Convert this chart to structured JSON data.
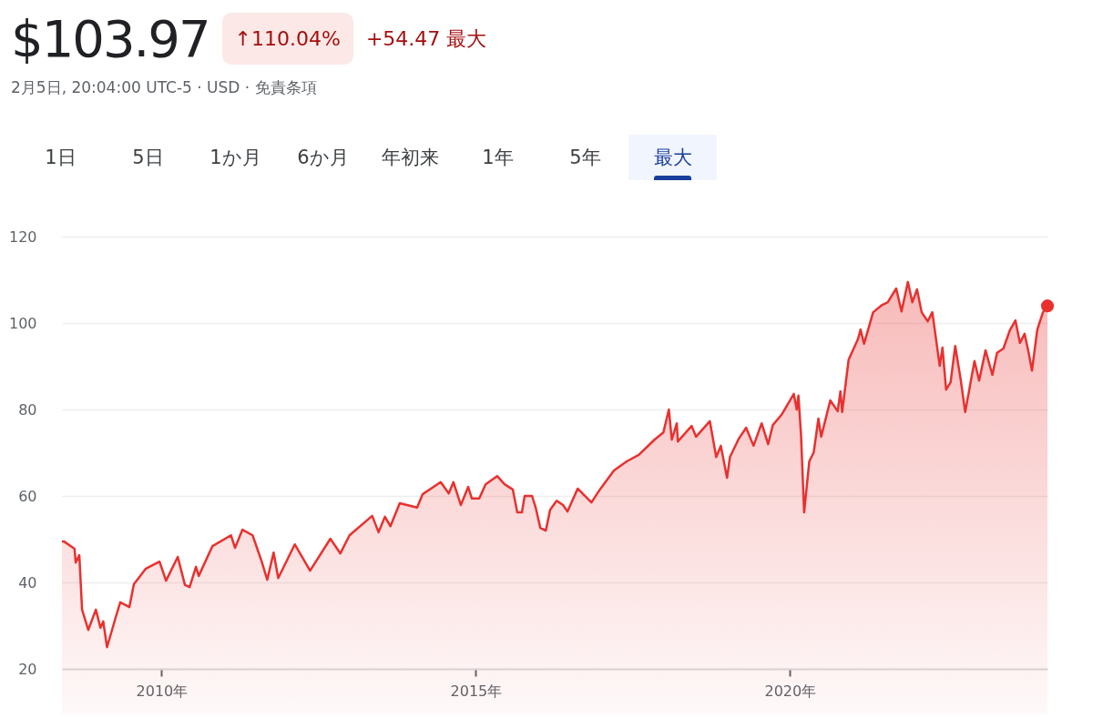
{
  "chart_data": {
    "type": "area",
    "title": "$103.97",
    "subtitle": "2月5日, 20:04:00 UTC-5 · USD · 免責条項",
    "annotations": [
      "↑110.04%",
      "+54.47 最大",
      "1日",
      "5日",
      "1か月",
      "6か月",
      "年初来",
      "1年",
      "5年",
      "最大"
    ],
    "x": [
      "2008-06-01",
      "2008-06-12",
      "2008-08-13",
      "2008-08-20",
      "2008-09-10",
      "2008-09-26",
      "2008-11-01",
      "2008-12-15",
      "2009-01-11",
      "2009-01-27",
      "2009-02-18",
      "2009-04-10",
      "2009-05-06",
      "2009-06-28",
      "2009-07-24",
      "2009-10-02",
      "2009-12-20",
      "2010-01-27",
      "2010-04-05",
      "2010-05-17",
      "2010-06-13",
      "2010-07-20",
      "2010-08-05",
      "2010-10-24",
      "2011-02-08",
      "2011-03-04",
      "2011-04-16",
      "2011-06-14",
      "2011-08-06",
      "2011-09-07",
      "2011-10-14",
      "2011-11-10",
      "2012-02-14",
      "2012-05-13",
      "2012-09-08",
      "2012-11-05",
      "2012-12-28",
      "2013-05-09",
      "2013-06-15",
      "2013-07-22",
      "2013-08-23",
      "2013-10-16",
      "2014-01-25",
      "2014-02-26",
      "2014-06-11",
      "2014-07-28",
      "2014-08-24",
      "2014-10-06",
      "2014-11-18",
      "2014-12-09",
      "2015-01-21",
      "2015-02-27",
      "2015-05-05",
      "2015-06-17",
      "2015-08-04",
      "2015-08-30",
      "2015-09-26",
      "2015-10-12",
      "2015-11-24",
      "2015-12-15",
      "2016-01-11",
      "2016-02-12",
      "2016-03-08",
      "2016-04-15",
      "2016-05-22",
      "2016-06-17",
      "2016-08-15",
      "2016-11-03",
      "2016-12-26",
      "2017-03-14",
      "2017-05-27",
      "2017-08-05",
      "2017-11-04",
      "2017-12-26",
      "2018-01-27",
      "2018-02-13",
      "2018-03-14",
      "2018-03-20",
      "2018-06-08",
      "2018-07-04",
      "2018-09-22",
      "2018-10-29",
      "2018-11-25",
      "2018-12-31",
      "2019-01-17",
      "2019-03-10",
      "2019-04-21",
      "2019-06-03",
      "2019-07-20",
      "2019-08-27",
      "2019-09-23",
      "2019-11-15",
      "2020-01-23",
      "2020-02-09",
      "2020-02-19",
      "2020-03-05",
      "2020-03-23",
      "2020-04-22",
      "2020-05-18",
      "2020-06-14",
      "2020-06-30",
      "2020-08-22",
      "2020-10-04",
      "2020-10-20",
      "2020-10-30",
      "2020-11-21",
      "2020-12-07",
      "2021-01-29",
      "2021-02-14",
      "2021-03-06",
      "2021-04-28",
      "2021-06-20",
      "2021-07-22",
      "2021-09-09",
      "2021-10-10",
      "2021-11-16",
      "2021-12-12",
      "2022-01-08",
      "2022-02-04",
      "2022-03-11",
      "2022-04-07",
      "2022-05-20",
      "2022-06-05",
      "2022-06-26",
      "2022-07-22",
      "2022-08-18",
      "2022-09-19",
      "2022-10-15",
      "2022-11-11",
      "2022-12-08",
      "2023-01-04",
      "2023-02-10",
      "2023-03-22",
      "2023-04-18",
      "2023-05-25",
      "2023-07-01",
      "2023-08-03",
      "2023-08-29",
      "2023-09-25",
      "2023-10-16",
      "2023-11-07",
      "2023-12-08",
      "2024-01-10",
      "2024-02-05"
    ],
    "series": [
      {
        "color": "#e8312f",
        "values": [
          49.5,
          49.5,
          47.8,
          44.6,
          46.3,
          33.7,
          29,
          33.7,
          29.5,
          31,
          25,
          32,
          35.4,
          34.3,
          39.6,
          43.2,
          44.8,
          40.4,
          45.9,
          39.4,
          38.9,
          43.6,
          41.5,
          48.4,
          50.9,
          48,
          52.2,
          50.9,
          44.8,
          40.6,
          46.9,
          41,
          48.8,
          42.7,
          50.1,
          46.7,
          50.9,
          55.4,
          51.6,
          55.2,
          53,
          58.3,
          57.3,
          60.4,
          63.2,
          60.6,
          63.2,
          57.9,
          62.1,
          59.4,
          59.4,
          62.7,
          64.6,
          62.7,
          61.5,
          56.2,
          56.2,
          60,
          60,
          57.3,
          52.6,
          52,
          56.8,
          58.9,
          57.9,
          56.4,
          61.7,
          58.5,
          61.7,
          65.9,
          68,
          69.5,
          73,
          74.7,
          80,
          73,
          76.8,
          72.6,
          76.2,
          73.7,
          77.3,
          69,
          71.6,
          64.2,
          69,
          73.3,
          75.8,
          71.6,
          76.8,
          72,
          76.4,
          78.9,
          83.6,
          80,
          83.2,
          74.1,
          56.2,
          68,
          70.1,
          77.9,
          73.7,
          82.1,
          79.6,
          84.2,
          79.4,
          86.5,
          91.6,
          96.2,
          98.5,
          95.2,
          102.5,
          104.2,
          104.8,
          108,
          102.7,
          109.5,
          104.8,
          107.8,
          102.5,
          100.4,
          102.5,
          90.1,
          94.3,
          84.6,
          86.3,
          94.7,
          86.9,
          79.4,
          85.3,
          91.2,
          86.7,
          93.7,
          88,
          93.1,
          94.1,
          98.3,
          100.6,
          95.4,
          97.5,
          93.7,
          89,
          98.5,
          102.5,
          103.97
        ]
      }
    ],
    "xlim": [
      "2008-06-01",
      "2024-02-05"
    ],
    "xticks": [
      {
        "value": "2010-01-01",
        "label": "2010年"
      },
      {
        "value": "2015-01-01",
        "label": "2015年"
      },
      {
        "value": "2020-01-01",
        "label": "2020年"
      }
    ],
    "ylim": [
      20,
      120
    ],
    "yticks": [
      20,
      40,
      60,
      80,
      100,
      120
    ],
    "grid": "y"
  }
}
